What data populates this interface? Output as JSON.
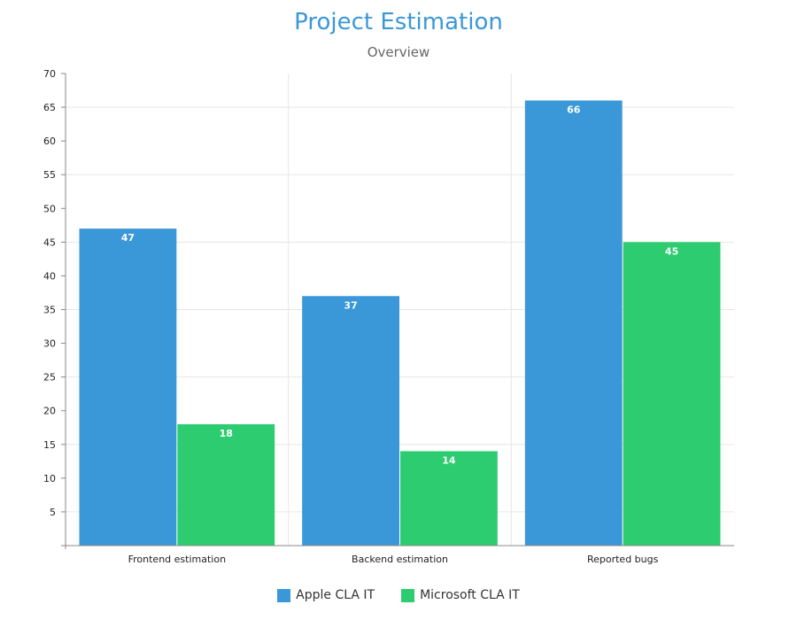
{
  "chart_data": {
    "type": "bar",
    "title": "Project Estimation",
    "subtitle": "Overview",
    "categories": [
      "Frontend estimation",
      "Backend estimation",
      "Reported bugs"
    ],
    "series": [
      {
        "name": "Apple CLA IT",
        "color": "#3a98d8",
        "values": [
          47,
          37,
          66
        ]
      },
      {
        "name": "Microsoft CLA IT",
        "color": "#2ecc71",
        "values": [
          18,
          14,
          45
        ]
      }
    ],
    "ylim": [
      0,
      70
    ],
    "yticks": [
      5,
      10,
      15,
      20,
      25,
      30,
      35,
      40,
      45,
      50,
      55,
      60,
      65,
      70
    ],
    "xlabel": "",
    "ylabel": "",
    "legend_position": "bottom-center"
  }
}
